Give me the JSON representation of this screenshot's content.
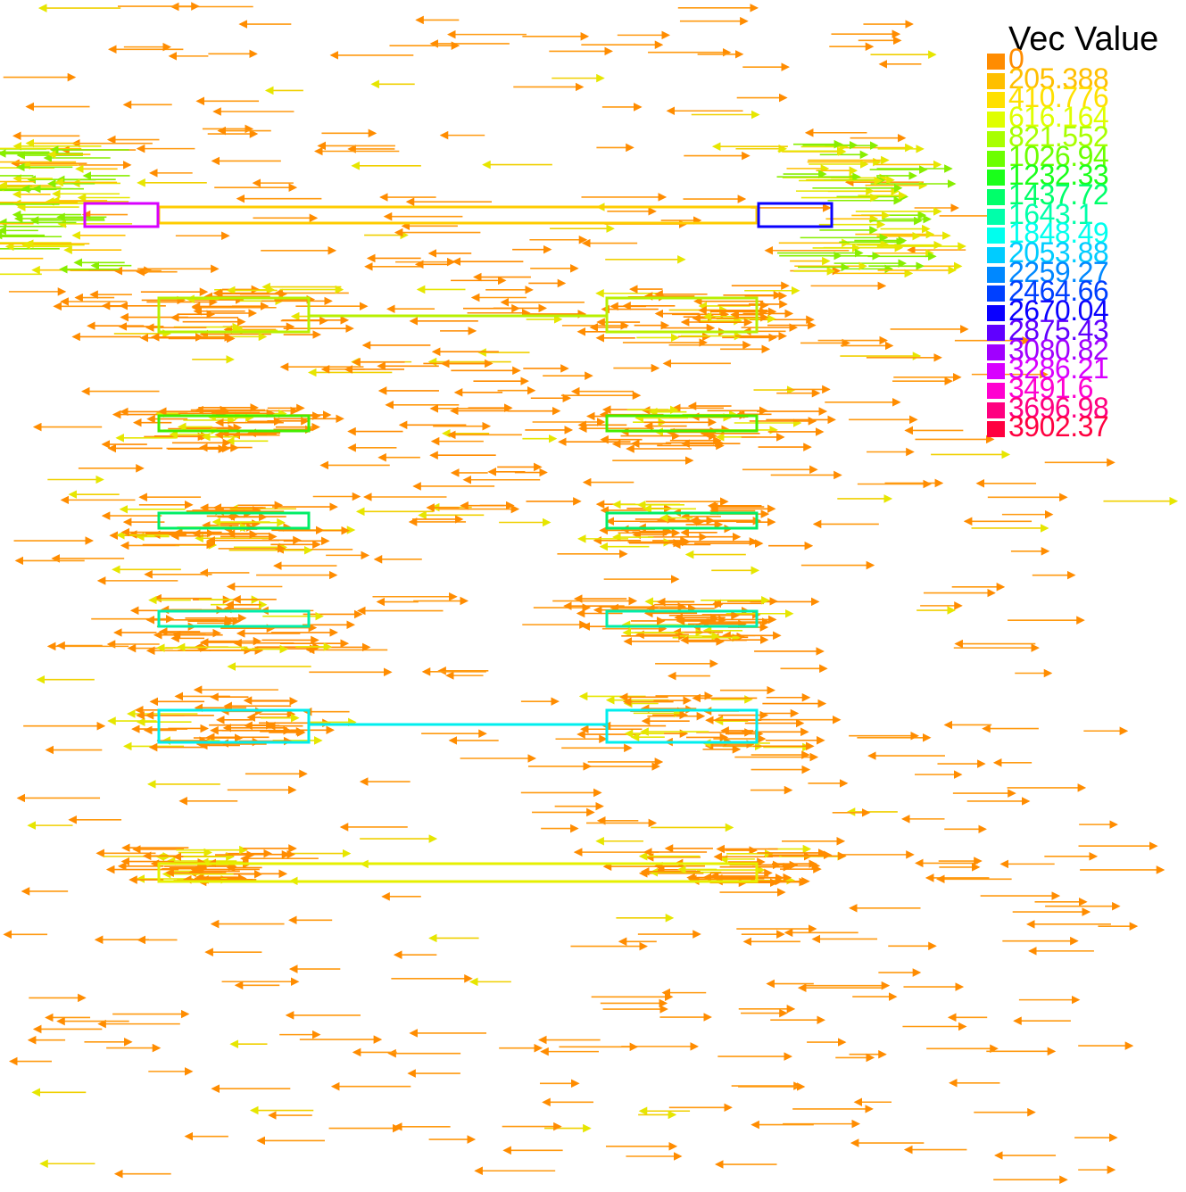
{
  "legend": {
    "title": "Vec Value",
    "levels": [
      {
        "label": "0",
        "color": "#ff8c00"
      },
      {
        "label": "205.388",
        "color": "#ffbf00"
      },
      {
        "label": "410.776",
        "color": "#ffe000"
      },
      {
        "label": "616.164",
        "color": "#dfff00"
      },
      {
        "label": "821.552",
        "color": "#a8ff00"
      },
      {
        "label": "1026.94",
        "color": "#6cff00"
      },
      {
        "label": "1232.33",
        "color": "#1aff1a"
      },
      {
        "label": "1437.72",
        "color": "#00ff6a"
      },
      {
        "label": "1643.1",
        "color": "#00ffaa"
      },
      {
        "label": "1848.49",
        "color": "#00ffee"
      },
      {
        "label": "2053.88",
        "color": "#00ccff"
      },
      {
        "label": "2259.27",
        "color": "#0088ff"
      },
      {
        "label": "2464.66",
        "color": "#0040ff"
      },
      {
        "label": "2670.04",
        "color": "#0a00ff"
      },
      {
        "label": "2875.43",
        "color": "#6000ff"
      },
      {
        "label": "3080.82",
        "color": "#a000ff"
      },
      {
        "label": "3286.21",
        "color": "#d800ff"
      },
      {
        "label": "3491.6",
        "color": "#ff00d0"
      },
      {
        "label": "3696.98",
        "color": "#ff0080"
      },
      {
        "label": "3902.37",
        "color": "#ff0040"
      }
    ]
  },
  "structure_colors": {
    "top_plate": "#ffcc00",
    "row1": "#b8f000",
    "row2": "#44ee00",
    "row3": "#00ee66",
    "row4": "#00eeaa",
    "row5": "#00eeee",
    "bottom_plate": "#e6f000"
  }
}
